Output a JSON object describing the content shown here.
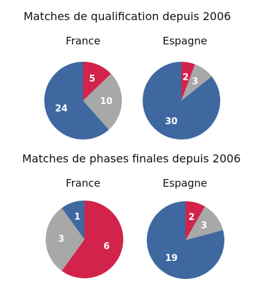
{
  "sections": [
    {
      "title": "Matches de qualification depuis 2006"
    },
    {
      "title": "Matches de phases finales depuis 2006"
    }
  ],
  "colors": {
    "blue": "#3f68a0",
    "gray": "#a8a8a8",
    "red": "#d2234b"
  },
  "chart_data": [
    {
      "type": "pie",
      "title": "France",
      "group": "Matches de qualification depuis 2006",
      "slices": [
        {
          "value": 24,
          "label": "24",
          "color": "#3f68a0"
        },
        {
          "value": 10,
          "label": "10",
          "color": "#a8a8a8"
        },
        {
          "value": 5,
          "label": "5",
          "color": "#d2234b"
        }
      ]
    },
    {
      "type": "pie",
      "title": "Espagne",
      "group": "Matches de qualification depuis 2006",
      "slices": [
        {
          "value": 30,
          "label": "30",
          "color": "#3f68a0"
        },
        {
          "value": 3,
          "label": "3",
          "color": "#a8a8a8"
        },
        {
          "value": 2,
          "label": "2",
          "color": "#d2234b"
        }
      ]
    },
    {
      "type": "pie",
      "title": "France",
      "group": "Matches de phases finales depuis 2006",
      "slices": [
        {
          "value": 1,
          "label": "1",
          "color": "#3f68a0"
        },
        {
          "value": 3,
          "label": "3",
          "color": "#a8a8a8"
        },
        {
          "value": 6,
          "label": "6",
          "color": "#d2234b"
        }
      ]
    },
    {
      "type": "pie",
      "title": "Espagne",
      "group": "Matches de phases finales depuis 2006",
      "slices": [
        {
          "value": 19,
          "label": "19",
          "color": "#3f68a0"
        },
        {
          "value": 3,
          "label": "3",
          "color": "#a8a8a8"
        },
        {
          "value": 2,
          "label": "2",
          "color": "#d2234b"
        }
      ]
    }
  ]
}
